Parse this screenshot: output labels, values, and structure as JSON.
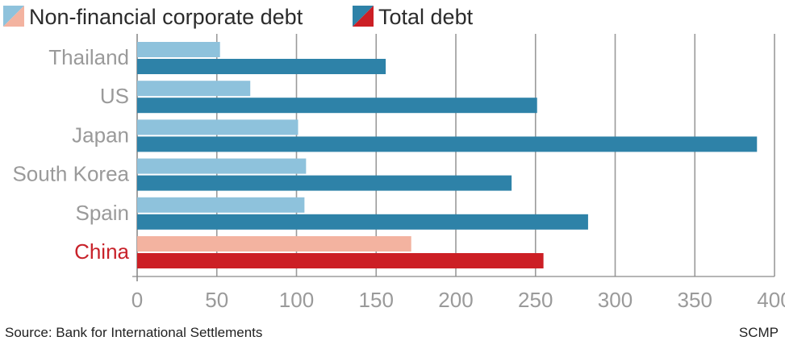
{
  "legend": {
    "items": [
      {
        "label": "Non-financial corporate debt",
        "color_a": "#8ec2dc",
        "color_b": "#f3b3a0"
      },
      {
        "label": "Total debt",
        "color_a": "#2e82a8",
        "color_b": "#cc1f25"
      }
    ]
  },
  "footer": {
    "source": "Source: Bank for International Settlements",
    "credit": "SCMP"
  },
  "colors": {
    "non_financial": "#8ec2dc",
    "total": "#2e82a8",
    "highlight_non_financial": "#f3b3a0",
    "highlight_total": "#cc1f25",
    "highlight_label": "#c8222a",
    "category_label": "#9a9a9a",
    "grid": "#9a9a9a",
    "axis": "#8a8a8a"
  },
  "chart_data": {
    "type": "bar",
    "orientation": "horizontal",
    "categories": [
      "Thailand",
      "US",
      "Japan",
      "South Korea",
      "Spain",
      "China"
    ],
    "highlight": "China",
    "series": [
      {
        "name": "Non-financial corporate debt",
        "values": [
          52,
          71,
          101,
          106,
          105,
          172
        ]
      },
      {
        "name": "Total debt",
        "values": [
          156,
          251,
          389,
          235,
          283,
          255
        ]
      }
    ],
    "xlim": [
      0,
      400
    ],
    "xticks": [
      "0",
      "50",
      "100",
      "150",
      "200",
      "250",
      "300",
      "350",
      "400"
    ],
    "grid": true,
    "legend_position": "top-left"
  }
}
